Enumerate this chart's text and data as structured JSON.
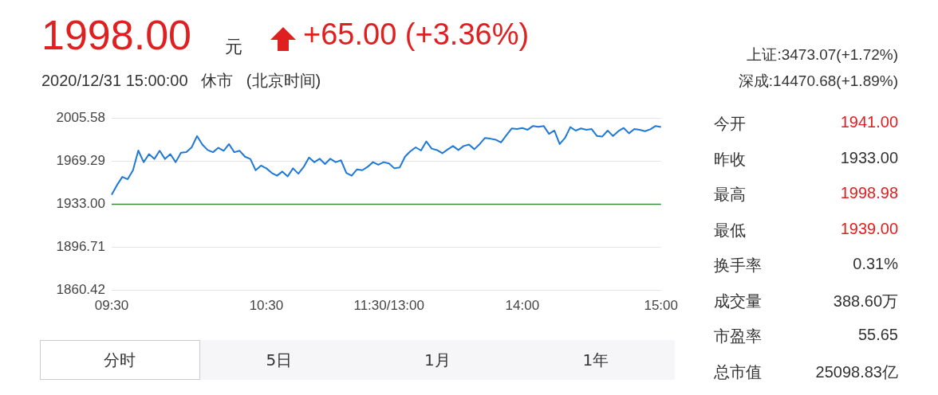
{
  "chart_data": {
    "type": "line",
    "title": "1998.00",
    "subtitle": "2020/12/31 15:00:00   休市   (北京时间)",
    "annotations": [
      "元",
      "+65.00 (+3.36%)",
      "上证:3473.07(+1.72%)",
      "深成:14470.68(+1.89%)",
      "今开",
      "1941.00",
      "昨收",
      "1933.00",
      "最高",
      "1998.98",
      "最低",
      "1939.00",
      "换手率",
      "0.31%",
      "成交量",
      "388.60万",
      "市盈率",
      "55.65",
      "总市值",
      "25098.83亿",
      "分时",
      "5日",
      "1月",
      "1年"
    ],
    "categories": [
      "09:30",
      null,
      null,
      null,
      null,
      null,
      null,
      null,
      null,
      null,
      null,
      null,
      null,
      null,
      null,
      null,
      null,
      null,
      null,
      null,
      null,
      null,
      null,
      null,
      null,
      null,
      null,
      null,
      null,
      "10:30",
      null,
      null,
      null,
      null,
      null,
      null,
      null,
      null,
      null,
      null,
      null,
      null,
      null,
      null,
      null,
      null,
      null,
      null,
      null,
      null,
      null,
      null,
      "11:30/13:00",
      null,
      null,
      null,
      null,
      null,
      null,
      null,
      null,
      null,
      null,
      null,
      null,
      null,
      null,
      null,
      null,
      null,
      null,
      null,
      null,
      null,
      null,
      null,
      null,
      "14:00",
      null,
      null,
      null,
      null,
      null,
      null,
      null,
      null,
      null,
      null,
      null,
      null,
      null,
      null,
      null,
      null,
      null,
      null,
      null,
      null,
      null,
      null,
      null,
      null,
      null,
      "15:00"
    ],
    "series": [
      {
        "color": "#1e78d7",
        "values": [
          1941,
          1949.1,
          1956,
          1954,
          1961.6,
          1978.2,
          1968.4,
          1975.2,
          1971.1,
          1978,
          1971.1,
          1975.2,
          1968.4,
          1976.4,
          1976.8,
          1980.9,
          1990.4,
          1983.2,
          1978.6,
          1976.8,
          1980.5,
          1978,
          1983.6,
          1976.8,
          1978,
          1973,
          1971.1,
          1961.6,
          1965.5,
          1963.2,
          1959.4,
          1957,
          1960.5,
          1956.4,
          1963.2,
          1958.7,
          1964.3,
          1972.3,
          1968.4,
          1971.3,
          1966.8,
          1971.3,
          1968.4,
          1970,
          1959.4,
          1957,
          1962.3,
          1961.6,
          1964.5,
          1968.4,
          1966.2,
          1968.4,
          1967.3,
          1963.2,
          1963.9,
          1973,
          1977.5,
          1980.9,
          1978.2,
          1985.9,
          1979.8,
          1978.6,
          1975.9,
          1979.1,
          1982,
          1978.6,
          1982,
          1983.2,
          1979.3,
          1983.6,
          1988.8,
          1988.2,
          1987.3,
          1985,
          1991.1,
          1996.8,
          1996.3,
          1997.2,
          1995.7,
          1998.9,
          1998.2,
          1998.9,
          1992.2,
          1995,
          1983.6,
          1988.8,
          1997.9,
          1995,
          1996.8,
          1995.7,
          1996.3,
          1990.4,
          1990,
          1995,
          1990.4,
          1994.5,
          1997.2,
          1992.7,
          1996.3,
          1995.7,
          1994.5,
          1996.1,
          1998.9,
          1998
        ]
      }
    ],
    "ylim": [
      1860.42,
      2005.58
    ],
    "yticks": [
      1860.42,
      1896.71,
      {
        "value": 1933,
        "label": "1933.00"
      },
      1969.29,
      2005.58
    ],
    "ref_lines": [
      {
        "axis": "y",
        "value": 1933,
        "color": "#3a8a3a"
      }
    ],
    "grid": "y",
    "legend": false,
    "marker": "none",
    "line_style": "solid"
  }
}
